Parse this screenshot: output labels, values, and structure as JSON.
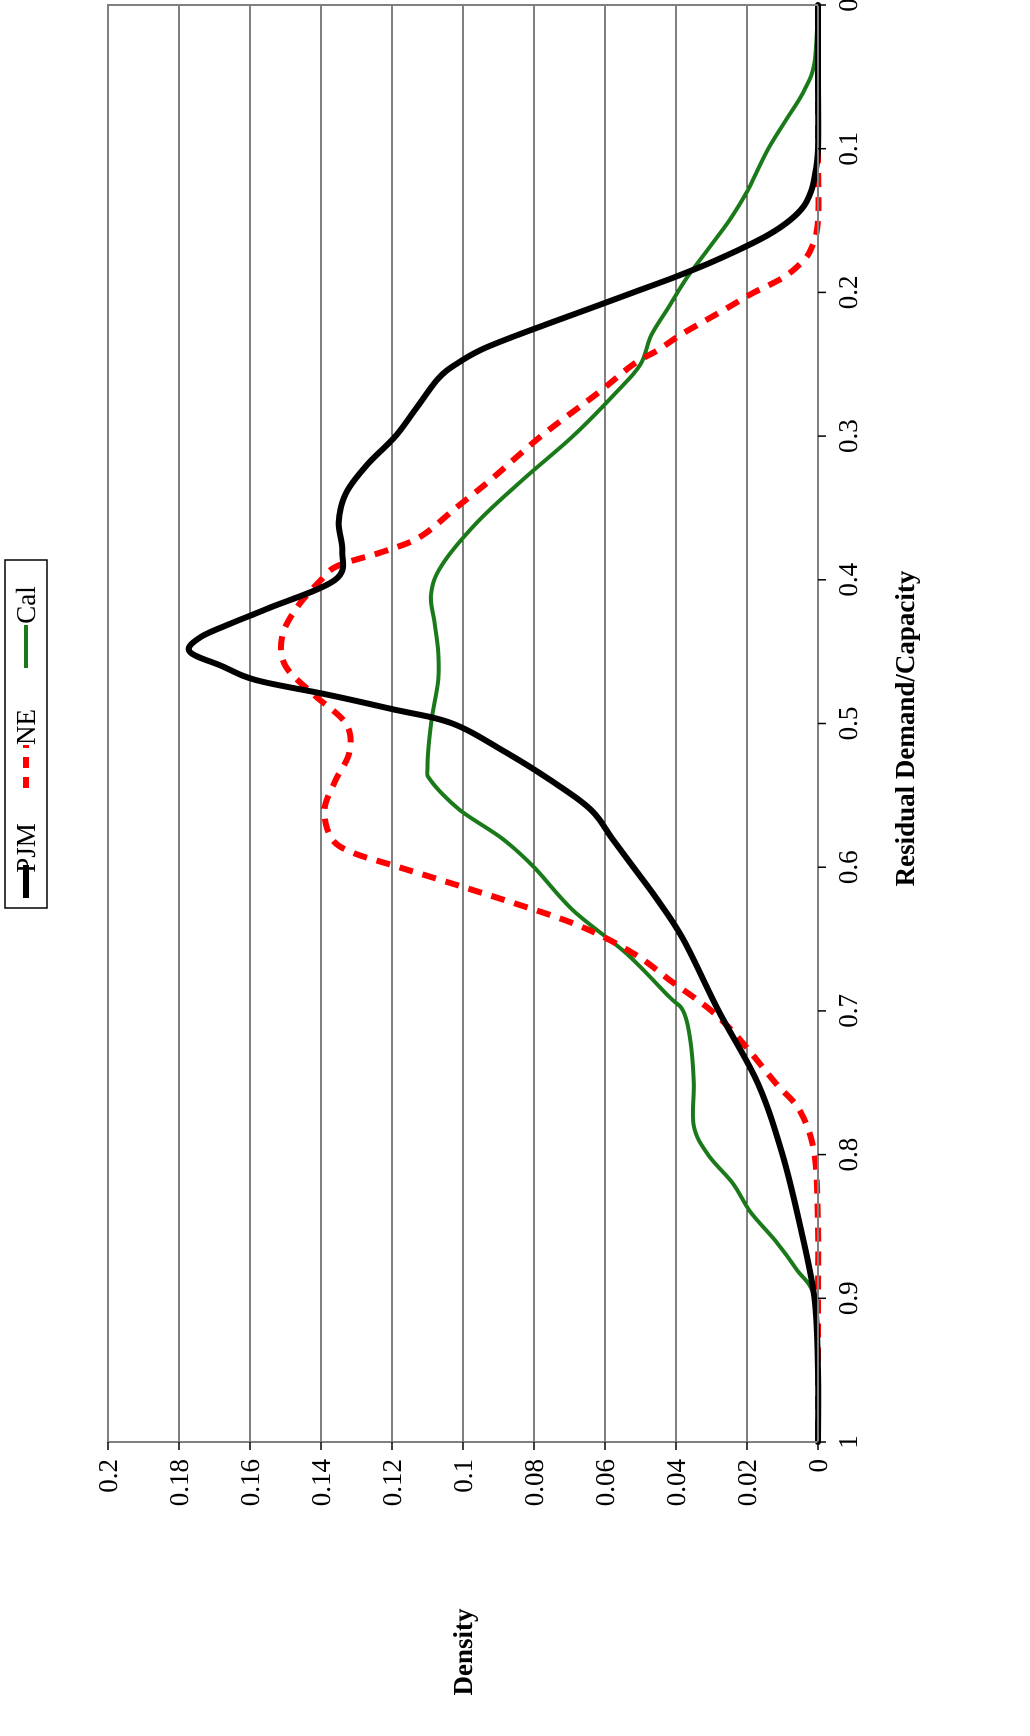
{
  "chart_data": {
    "type": "line",
    "orientation": "rotated-90",
    "xlabel": "Residual Demand/Capacity",
    "ylabel": "Density",
    "xlim": [
      0,
      1
    ],
    "ylim": [
      0,
      0.2
    ],
    "x_ticks": [
      "0",
      "0.1",
      "0.2",
      "0.3",
      "0.4",
      "0.5",
      "0.6",
      "0.7",
      "0.8",
      "0.9",
      "1"
    ],
    "y_ticks": [
      "0",
      "0.02",
      "0.04",
      "0.06",
      "0.08",
      "0.1",
      "0.12",
      "0.14",
      "0.16",
      "0.18",
      "0.2"
    ],
    "grid": "horizontal-gridlines",
    "legend_position": "top",
    "series": [
      {
        "name": "PJM",
        "color": "#000000",
        "style": "solid-thick",
        "x": [
          0,
          0.05,
          0.1,
          0.12,
          0.13,
          0.14,
          0.15,
          0.16,
          0.17,
          0.18,
          0.19,
          0.2,
          0.21,
          0.22,
          0.23,
          0.24,
          0.25,
          0.26,
          0.28,
          0.3,
          0.32,
          0.34,
          0.36,
          0.38,
          0.4,
          0.42,
          0.43,
          0.44,
          0.45,
          0.46,
          0.47,
          0.48,
          0.49,
          0.5,
          0.52,
          0.54,
          0.56,
          0.58,
          0.6,
          0.62,
          0.65,
          0.7,
          0.75,
          0.8,
          0.85,
          0.9,
          0.95,
          1.0
        ],
        "y": [
          0,
          0,
          0,
          0.001,
          0.002,
          0.004,
          0.008,
          0.014,
          0.022,
          0.031,
          0.041,
          0.052,
          0.063,
          0.074,
          0.085,
          0.095,
          0.102,
          0.107,
          0.113,
          0.119,
          0.127,
          0.133,
          0.135,
          0.134,
          0.136,
          0.155,
          0.165,
          0.174,
          0.177,
          0.168,
          0.158,
          0.138,
          0.12,
          0.103,
          0.088,
          0.075,
          0.064,
          0.058,
          0.052,
          0.046,
          0.038,
          0.028,
          0.017,
          0.01,
          0.005,
          0.001,
          0,
          0
        ]
      },
      {
        "name": "NE",
        "color": "#ff0000",
        "style": "dashed-thick",
        "x": [
          0,
          0.1,
          0.15,
          0.17,
          0.18,
          0.19,
          0.2,
          0.21,
          0.22,
          0.23,
          0.24,
          0.25,
          0.27,
          0.3,
          0.33,
          0.35,
          0.37,
          0.38,
          0.39,
          0.4,
          0.42,
          0.44,
          0.46,
          0.48,
          0.5,
          0.52,
          0.54,
          0.56,
          0.58,
          0.59,
          0.6,
          0.62,
          0.64,
          0.66,
          0.68,
          0.7,
          0.72,
          0.75,
          0.77,
          0.8,
          0.85,
          0.9,
          1.0
        ],
        "y": [
          0,
          0,
          0,
          0.002,
          0.005,
          0.01,
          0.018,
          0.025,
          0.032,
          0.039,
          0.045,
          0.052,
          0.062,
          0.078,
          0.092,
          0.102,
          0.112,
          0.122,
          0.135,
          0.14,
          0.147,
          0.151,
          0.15,
          0.142,
          0.133,
          0.132,
          0.136,
          0.139,
          0.137,
          0.131,
          0.118,
          0.092,
          0.068,
          0.052,
          0.041,
          0.03,
          0.022,
          0.012,
          0.005,
          0.001,
          0,
          0,
          0
        ]
      },
      {
        "name": "Cal",
        "color": "#1a7a1a",
        "style": "solid",
        "x": [
          0,
          0.04,
          0.06,
          0.08,
          0.1,
          0.12,
          0.13,
          0.15,
          0.17,
          0.19,
          0.21,
          0.23,
          0.25,
          0.27,
          0.3,
          0.33,
          0.36,
          0.39,
          0.41,
          0.43,
          0.45,
          0.47,
          0.5,
          0.53,
          0.54,
          0.56,
          0.58,
          0.6,
          0.63,
          0.66,
          0.69,
          0.7,
          0.72,
          0.75,
          0.78,
          0.8,
          0.82,
          0.84,
          0.86,
          0.88,
          0.9,
          0.95,
          1.0
        ],
        "y": [
          0,
          0.001,
          0.004,
          0.009,
          0.014,
          0.018,
          0.02,
          0.025,
          0.031,
          0.037,
          0.042,
          0.047,
          0.05,
          0.057,
          0.069,
          0.083,
          0.096,
          0.106,
          0.109,
          0.108,
          0.107,
          0.107,
          0.109,
          0.11,
          0.109,
          0.101,
          0.089,
          0.08,
          0.069,
          0.054,
          0.042,
          0.038,
          0.036,
          0.035,
          0.035,
          0.031,
          0.024,
          0.019,
          0.012,
          0.006,
          0.001,
          0,
          0
        ]
      }
    ]
  }
}
